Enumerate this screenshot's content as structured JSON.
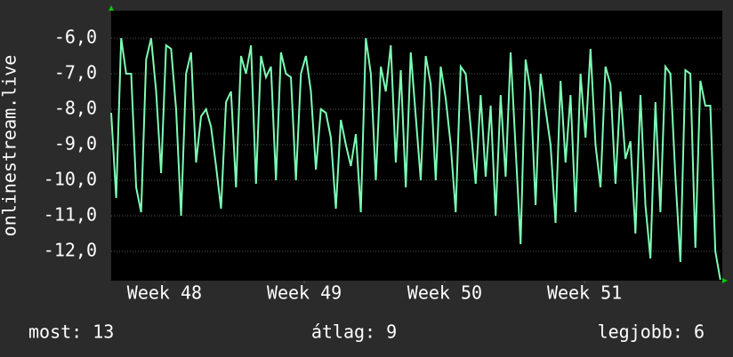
{
  "chart_data": {
    "type": "line",
    "y_label": "onlinestream.live",
    "footer": {
      "current": "most: 13",
      "average": "átlag: 9",
      "best": "legjobb: 6"
    },
    "xlim": [
      0,
      30.6
    ],
    "xticks": [
      {
        "value": 2.67,
        "label": "Week 48"
      },
      {
        "value": 9.67,
        "label": "Week 49"
      },
      {
        "value": 16.7,
        "label": "Week 50"
      },
      {
        "value": 23.7,
        "label": "Week 51"
      }
    ],
    "ylim": [
      -12.825,
      -5.225
    ],
    "yticks": [
      {
        "value": -12,
        "label": "-12,0"
      },
      {
        "value": -11,
        "label": "-11,0"
      },
      {
        "value": -10,
        "label": "-10,0"
      },
      {
        "value": -9,
        "label": "-9,0"
      },
      {
        "value": -8,
        "label": "-8,0"
      },
      {
        "value": -7,
        "label": "-7,0"
      },
      {
        "value": -6,
        "label": "-6,0"
      }
    ],
    "grid": true,
    "color": "#7dfcb4",
    "x": [
      0,
      0.25,
      0.5,
      0.75,
      1,
      1.25,
      1.5,
      1.75,
      2,
      2.25,
      2.5,
      2.75,
      3,
      3.25,
      3.5,
      3.75,
      4,
      4.25,
      4.5,
      4.75,
      5,
      5.25,
      5.5,
      5.75,
      6,
      6.25,
      6.5,
      6.75,
      7,
      7.25,
      7.5,
      7.75,
      8,
      8.25,
      8.5,
      8.75,
      9,
      9.25,
      9.5,
      9.75,
      10,
      10.25,
      10.5,
      10.75,
      11,
      11.25,
      11.5,
      11.75,
      12,
      12.25,
      12.5,
      12.75,
      13,
      13.25,
      13.5,
      13.75,
      14,
      14.25,
      14.5,
      14.75,
      15,
      15.25,
      15.5,
      15.75,
      16,
      16.25,
      16.5,
      16.75,
      17,
      17.25,
      17.5,
      17.75,
      18,
      18.25,
      18.5,
      18.75,
      19,
      19.25,
      19.5,
      19.75,
      20,
      20.25,
      20.5,
      20.75,
      21,
      21.25,
      21.5,
      21.75,
      22,
      22.25,
      22.5,
      22.75,
      23,
      23.25,
      23.5,
      23.75,
      24,
      24.25,
      24.5,
      24.75,
      25,
      25.25,
      25.5,
      25.75,
      26,
      26.25,
      26.5,
      26.75,
      27,
      27.25,
      27.5,
      27.75,
      28,
      28.25,
      28.5,
      28.75,
      29,
      29.25,
      29.5,
      29.75,
      30,
      30.25,
      30.5
    ],
    "values": [
      -8.1,
      -10.5,
      -6.0,
      -7.0,
      -7.0,
      -10.2,
      -10.9,
      -6.6,
      -6.0,
      -7.5,
      -9.8,
      -6.2,
      -6.3,
      -8.0,
      -11.0,
      -7.0,
      -6.4,
      -9.5,
      -8.2,
      -8.0,
      -8.5,
      -9.6,
      -10.8,
      -7.8,
      -7.5,
      -10.2,
      -6.5,
      -7.0,
      -6.2,
      -10.1,
      -6.5,
      -7.1,
      -6.8,
      -10.0,
      -6.4,
      -7.0,
      -7.1,
      -10.0,
      -7.0,
      -6.5,
      -7.5,
      -9.7,
      -8.0,
      -8.1,
      -8.8,
      -10.8,
      -8.3,
      -9.0,
      -9.6,
      -8.7,
      -10.9,
      -6.0,
      -7.0,
      -10.0,
      -6.8,
      -7.5,
      -6.2,
      -9.5,
      -6.9,
      -10.2,
      -6.4,
      -8.2,
      -10.0,
      -6.5,
      -7.3,
      -10.0,
      -6.8,
      -7.7,
      -9.0,
      -10.9,
      -6.8,
      -7.0,
      -8.5,
      -10.1,
      -7.6,
      -9.9,
      -7.9,
      -11.0,
      -7.6,
      -9.9,
      -6.4,
      -9.1,
      -11.8,
      -6.6,
      -7.5,
      -10.7,
      -7.0,
      -8.0,
      -9.0,
      -11.2,
      -7.2,
      -9.5,
      -7.6,
      -10.9,
      -7.0,
      -8.8,
      -6.3,
      -9.0,
      -10.2,
      -6.8,
      -7.3,
      -10.1,
      -7.5,
      -9.4,
      -8.9,
      -11.5,
      -7.6,
      -10.7,
      -12.2,
      -7.8,
      -10.9,
      -6.8,
      -7.0,
      -9.9,
      -12.3,
      -6.9,
      -7.0,
      -11.9,
      -7.2,
      -7.9,
      -7.9,
      -12.0,
      -12.8
    ]
  }
}
